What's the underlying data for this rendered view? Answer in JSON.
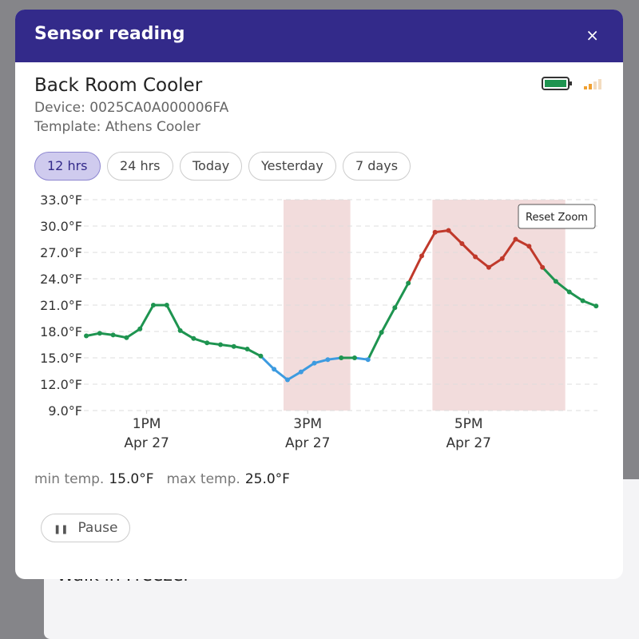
{
  "background_card_title": "Walk in Freezer",
  "modal": {
    "title": "Sensor reading",
    "close": "×"
  },
  "device": {
    "name": "Back Room Cooler",
    "device_line": "Device: 0025CA0A000006FA",
    "template_line": "Template: Athens Cooler"
  },
  "tabs": {
    "items": [
      "12 hrs",
      "24 hrs",
      "Today",
      "Yesterday",
      "7 days"
    ],
    "active": 0
  },
  "chart_data": {
    "type": "line",
    "reset_zoom": "Reset Zoom",
    "x": [
      12.25,
      12.417,
      12.583,
      12.75,
      12.917,
      13.083,
      13.25,
      13.417,
      13.583,
      13.75,
      13.917,
      14.083,
      14.25,
      14.417,
      14.583,
      14.75,
      14.917,
      15.083,
      15.25,
      15.417,
      15.583,
      15.75,
      15.917,
      16.083,
      16.25,
      16.417,
      16.583,
      16.75,
      16.917,
      17.083,
      17.25,
      17.417,
      17.583,
      17.75,
      17.917,
      18.083,
      18.25,
      18.417,
      18.583
    ],
    "values": [
      17.5,
      17.8,
      17.6,
      17.3,
      18.3,
      21.0,
      21.0,
      18.1,
      17.2,
      16.7,
      16.5,
      16.3,
      16.0,
      15.2,
      13.7,
      12.5,
      13.4,
      14.4,
      14.8,
      15.0,
      15.0,
      14.8,
      17.9,
      20.7,
      23.5,
      26.6,
      29.3,
      29.5,
      28.0,
      26.5,
      25.3,
      26.3,
      28.5,
      27.7,
      25.3,
      23.7,
      22.5,
      21.5,
      20.9
    ],
    "colors": {
      "normal": "#1e9450",
      "low": "#3d9be0",
      "high": "#c0392b"
    },
    "band_color": "#f2dcdc",
    "bands": [
      {
        "from": 14.7,
        "to": 15.53
      },
      {
        "from": 16.55,
        "to": 18.2
      }
    ],
    "xlim": [
      12.22,
      18.6
    ],
    "xticks": [
      {
        "value": 13,
        "label": "1PM",
        "date": "Apr 27"
      },
      {
        "value": 15,
        "label": "3PM",
        "date": "Apr 27"
      },
      {
        "value": 17,
        "label": "5PM",
        "date": "Apr 27"
      }
    ],
    "ylim": [
      9,
      33
    ],
    "yticks": [
      {
        "value": 9,
        "label": "9.0°F"
      },
      {
        "value": 12,
        "label": "12.0°F"
      },
      {
        "value": 15,
        "label": "15.0°F"
      },
      {
        "value": 18,
        "label": "18.0°F"
      },
      {
        "value": 21,
        "label": "21.0°F"
      },
      {
        "value": 24,
        "label": "24.0°F"
      },
      {
        "value": 27,
        "label": "27.0°F"
      },
      {
        "value": 30,
        "label": "30.0°F"
      },
      {
        "value": 33,
        "label": "33.0°F"
      }
    ],
    "thresholds": {
      "min": 15,
      "max": 25
    },
    "grid": true
  },
  "stats": [
    {
      "label": "min temp.",
      "value": "15.0°F"
    },
    {
      "label": "max temp.",
      "value": "25.0°F"
    }
  ],
  "pause": "Pause"
}
